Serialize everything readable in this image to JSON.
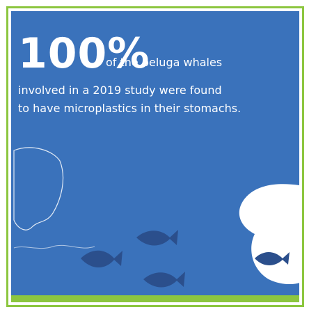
{
  "headline": {
    "stat": "100%",
    "lead": "of the beluga whales"
  },
  "body": [
    "involved in a 2019 study were found",
    "to have microplastics in their stomachs."
  ]
}
